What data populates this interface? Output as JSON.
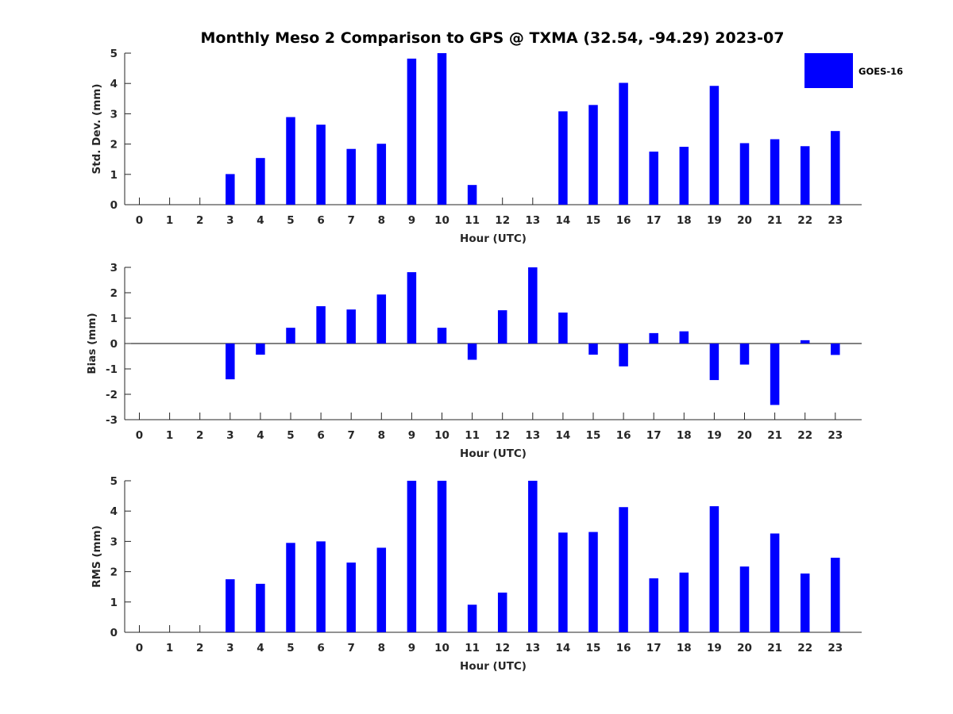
{
  "title": "Monthly Meso 2 Comparison to GPS @ TXMA (32.54, -94.29) 2023-07",
  "legend": {
    "label": "GOES-16",
    "color": "#0000ff",
    "placement": "top-right"
  },
  "colors": {
    "bar": "#0000ff",
    "axis": "#262626"
  },
  "chart_data": [
    {
      "type": "bar",
      "xlabel": "Hour (UTC)",
      "ylabel": "Std. Dev. (mm)",
      "categories": [
        0,
        1,
        2,
        3,
        4,
        5,
        6,
        7,
        8,
        9,
        10,
        11,
        12,
        13,
        14,
        15,
        16,
        17,
        18,
        19,
        20,
        21,
        22,
        23
      ],
      "series": [
        {
          "name": "GOES-16",
          "values": [
            null,
            null,
            null,
            1.01,
            1.54,
            2.89,
            2.64,
            1.84,
            2.01,
            4.82,
            5.0,
            0.65,
            null,
            null,
            3.08,
            3.29,
            4.02,
            1.75,
            1.91,
            3.92,
            2.03,
            2.16,
            1.93,
            2.43
          ]
        }
      ],
      "ylim": [
        0,
        5
      ],
      "yticks": [
        0,
        1,
        2,
        3,
        4,
        5
      ],
      "zero_line": false
    },
    {
      "type": "bar",
      "xlabel": "Hour (UTC)",
      "ylabel": "Bias (mm)",
      "categories": [
        0,
        1,
        2,
        3,
        4,
        5,
        6,
        7,
        8,
        9,
        10,
        11,
        12,
        13,
        14,
        15,
        16,
        17,
        18,
        19,
        20,
        21,
        22,
        23
      ],
      "series": [
        {
          "name": "GOES-16",
          "values": [
            null,
            null,
            null,
            -1.41,
            -0.44,
            0.62,
            1.47,
            1.34,
            1.93,
            2.81,
            0.62,
            -0.64,
            1.31,
            3.0,
            1.22,
            -0.44,
            -0.9,
            0.41,
            0.48,
            -1.44,
            -0.83,
            -2.42,
            0.13,
            -0.45
          ]
        }
      ],
      "ylim": [
        -3,
        3
      ],
      "yticks": [
        -3,
        -2,
        -1,
        0,
        1,
        2,
        3
      ],
      "zero_line": true
    },
    {
      "type": "bar",
      "xlabel": "Hour (UTC)",
      "ylabel": "RMS (mm)",
      "categories": [
        0,
        1,
        2,
        3,
        4,
        5,
        6,
        7,
        8,
        9,
        10,
        11,
        12,
        13,
        14,
        15,
        16,
        17,
        18,
        19,
        20,
        21,
        22,
        23
      ],
      "series": [
        {
          "name": "GOES-16",
          "values": [
            null,
            null,
            null,
            1.75,
            1.6,
            2.95,
            3.0,
            2.3,
            2.79,
            5.0,
            5.0,
            0.91,
            1.31,
            5.0,
            3.29,
            3.31,
            4.13,
            1.78,
            1.97,
            4.16,
            2.17,
            3.26,
            1.94,
            2.46
          ]
        }
      ],
      "ylim": [
        0,
        5
      ],
      "yticks": [
        0,
        1,
        2,
        3,
        4,
        5
      ],
      "zero_line": false
    }
  ]
}
